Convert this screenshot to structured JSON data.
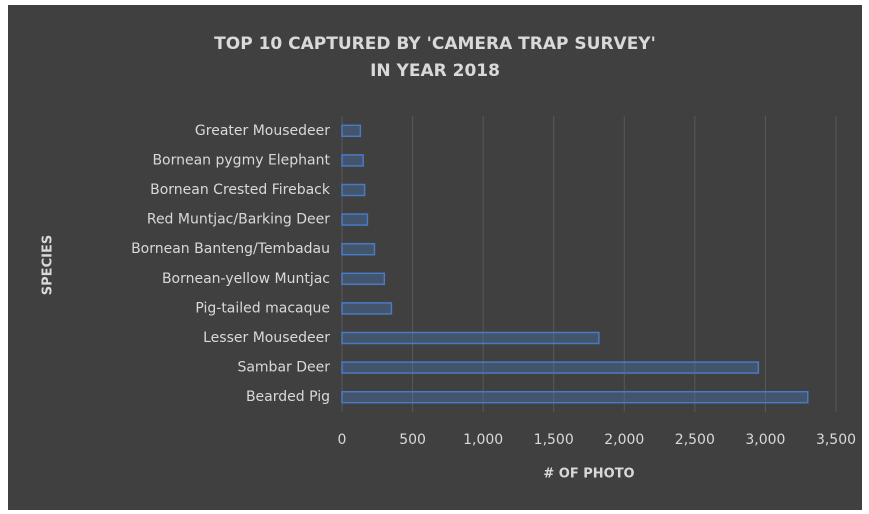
{
  "chart_data": {
    "type": "barh",
    "title": [
      "TOP 10 CAPTURED BY 'CAMERA TRAP SURVEY'",
      "IN YEAR 2018"
    ],
    "xlabel": "# OF PHOTO",
    "ylabel": "SPECIES",
    "categories": [
      "Bearded Pig",
      "Sambar Deer",
      "Lesser Mousedeer",
      "Pig-tailed macaque",
      "Bornean-yellow Muntjac",
      "Bornean Banteng/Tembadau",
      "Red Muntjac/Barking Deer",
      "Bornean Crested Fireback",
      "Bornean pygmy Elephant",
      "Greater Mousedeer"
    ],
    "values": [
      3300,
      2950,
      1820,
      350,
      300,
      230,
      180,
      160,
      150,
      130
    ],
    "color": "#4a7ac4",
    "xlim": [
      0,
      3500
    ],
    "xticks": [
      0,
      500,
      {
        "value": 1000,
        "label": "1,000"
      },
      {
        "value": 1500,
        "label": "1,500"
      },
      {
        "value": 2000,
        "label": "2,000"
      },
      {
        "value": 2500,
        "label": "2,500"
      },
      {
        "value": 3000,
        "label": "3,000"
      },
      {
        "value": 3500,
        "label": "3,500"
      }
    ],
    "grid": true
  }
}
